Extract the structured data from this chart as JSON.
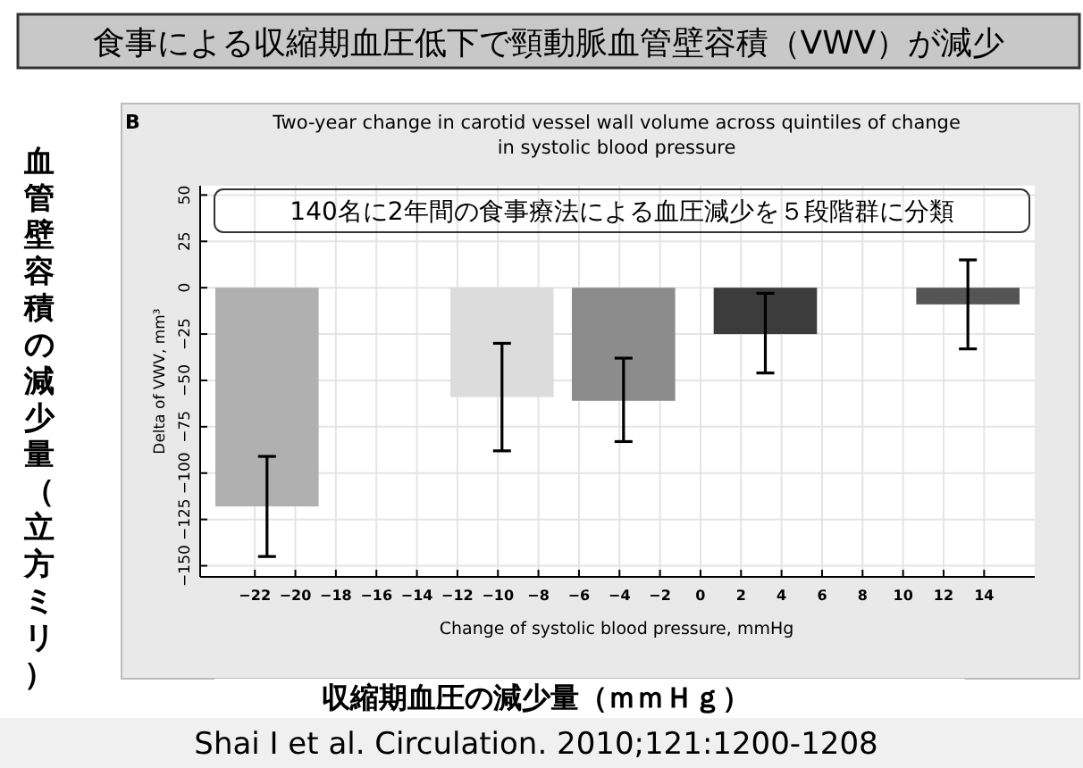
{
  "chart_data": {
    "type": "bar",
    "title": "食事による収縮期血圧低下で頸動脈血管壁容積（VWV）が減少",
    "subtitle": "Two-year change in carotid vessel wall volume across quintiles of change in systolic blood pressure",
    "xlabel": "Change of systolic blood pressure, mmHg",
    "ylabel": "Delta of VWV, mm³",
    "annotations": [
      "B",
      "140名に2年間の食事療法による血圧減少を５段階群に分類",
      "血管壁容積の減少量（立方ミリ）",
      "収縮期血圧の減少量（ｍｍＨｇ）",
      "Shai I et al. Circulation. 2010;121:1200-1208"
    ],
    "x": [
      -21.4,
      -9.8,
      -3.8,
      3.2,
      13.2
    ],
    "values": [
      -118,
      -59,
      -61,
      -25,
      -9
    ],
    "colors": [
      "#b0b0b0",
      "#dcdcdc",
      "#8c8c8c",
      "#3c3c3c",
      "#555555"
    ],
    "errors": [
      [
        -145,
        -91
      ],
      [
        -88,
        -30
      ],
      [
        -83,
        -38
      ],
      [
        -46,
        -3
      ],
      [
        -33,
        15
      ]
    ],
    "xlim": [
      -24.7,
      16.5
    ],
    "ylim": [
      -156,
      55
    ],
    "xticks": [
      {
        "value": -22,
        "label": "−22"
      },
      {
        "value": -20,
        "label": "−20"
      },
      {
        "value": -18,
        "label": "−18"
      },
      {
        "value": -16,
        "label": "−16"
      },
      {
        "value": -14,
        "label": "−14"
      },
      {
        "value": -12,
        "label": "−12"
      },
      {
        "value": -10,
        "label": "−10"
      },
      {
        "value": -8,
        "label": "−8"
      },
      {
        "value": -6,
        "label": "−6"
      },
      {
        "value": -4,
        "label": "−4"
      },
      {
        "value": -2,
        "label": "−2"
      },
      0,
      2,
      4,
      6,
      8,
      10,
      12,
      14
    ],
    "yticks": [
      {
        "value": -150,
        "label": "−150"
      },
      {
        "value": -125,
        "label": "−125"
      },
      {
        "value": -100,
        "label": "−100"
      },
      {
        "value": -75,
        "label": "−75"
      },
      {
        "value": -50,
        "label": "−50"
      },
      {
        "value": -25,
        "label": "−25"
      },
      0,
      25,
      50
    ],
    "grid": true
  }
}
